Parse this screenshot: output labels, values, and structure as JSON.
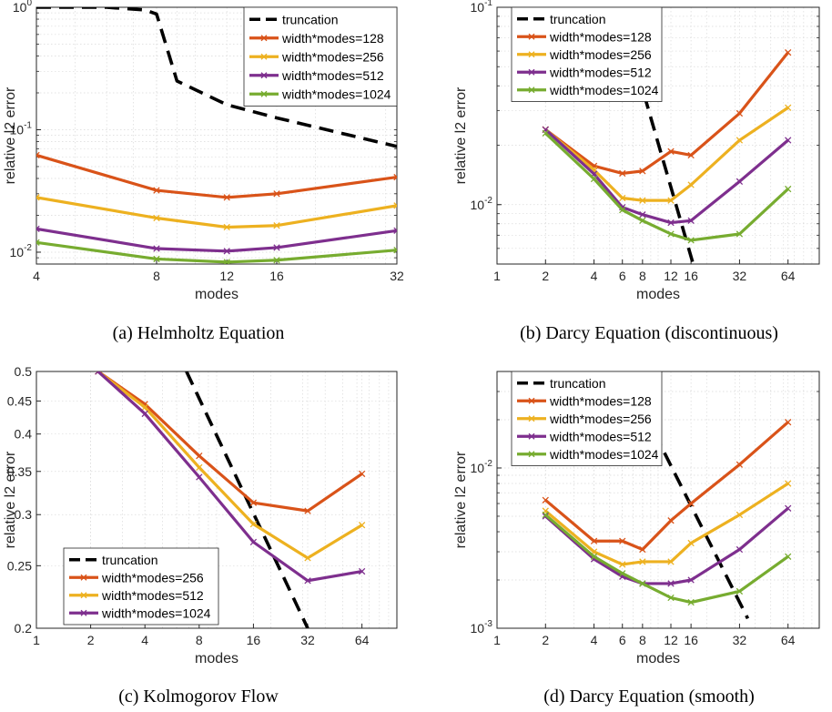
{
  "colors": {
    "truncation": "#000000",
    "c128": "#d95319",
    "c256": "#edb120",
    "c512": "#7e2f8e",
    "c1024": "#77ac30"
  },
  "chart_data": [
    {
      "id": "a",
      "type": "line",
      "caption": "(a) Helmholtz Equation",
      "xlabel": "modes",
      "ylabel": "relative l2 error",
      "x_scale": "log",
      "y_scale": "log",
      "xlim": [
        4,
        32
      ],
      "ylim": [
        0.008,
        1
      ],
      "xticks": [
        4,
        8,
        12,
        16,
        32
      ],
      "xtick_labels": [
        "4",
        "8",
        "12",
        "16",
        "32"
      ],
      "yticks": [
        0.01,
        0.1,
        1
      ],
      "ytick_labels": [
        {
          "b": "10",
          "e": "-2"
        },
        {
          "b": "10",
          "e": "-1"
        },
        {
          "b": "10",
          "e": "0"
        }
      ],
      "grid": true,
      "legend": {
        "position": "top-right",
        "entries": [
          "truncation",
          "width*modes=128",
          "width*modes=256",
          "width*modes=512",
          "width*modes=1024"
        ]
      },
      "series": [
        {
          "name": "truncation",
          "color": "#000000",
          "dashed": true,
          "x": [
            4,
            6,
            7.5,
            8,
            9,
            12,
            16,
            32
          ],
          "y": [
            1,
            1,
            0.95,
            0.88,
            0.25,
            0.16,
            0.125,
            0.073
          ]
        },
        {
          "name": "width*modes=128",
          "color": "#d95319",
          "x": [
            4,
            8,
            12,
            16,
            32
          ],
          "y": [
            0.062,
            0.032,
            0.028,
            0.03,
            0.041
          ]
        },
        {
          "name": "width*modes=256",
          "color": "#edb120",
          "x": [
            4,
            8,
            12,
            16,
            32
          ],
          "y": [
            0.028,
            0.019,
            0.016,
            0.0165,
            0.024
          ]
        },
        {
          "name": "width*modes=512",
          "color": "#7e2f8e",
          "x": [
            4,
            8,
            12,
            16,
            32
          ],
          "y": [
            0.0155,
            0.0107,
            0.0102,
            0.0109,
            0.015
          ]
        },
        {
          "name": "width*modes=1024",
          "color": "#77ac30",
          "x": [
            4,
            8,
            12,
            16,
            32
          ],
          "y": [
            0.012,
            0.0088,
            0.0083,
            0.0086,
            0.0104
          ]
        }
      ]
    },
    {
      "id": "b",
      "type": "line",
      "caption": "(b) Darcy Equation (discontinuous)",
      "xlabel": "modes",
      "ylabel": "relative l2 error",
      "x_scale": "log",
      "y_scale": "log",
      "xlim": [
        1,
        100
      ],
      "ylim": [
        0.005,
        0.1
      ],
      "xticks": [
        1,
        2,
        4,
        6,
        8,
        12,
        16,
        32,
        64
      ],
      "xtick_labels": [
        "1",
        "2",
        "4",
        "6",
        "8",
        "12",
        "16",
        "32",
        "64"
      ],
      "yticks": [
        0.01,
        0.1
      ],
      "ytick_labels": [
        {
          "b": "10",
          "e": "-2"
        },
        {
          "b": "10",
          "e": "-1"
        }
      ],
      "grid": true,
      "legend": {
        "position": "top-left",
        "entries": [
          "truncation",
          "width*modes=128",
          "width*modes=256",
          "width*modes=512",
          "width*modes=1024"
        ]
      },
      "series": [
        {
          "name": "truncation",
          "color": "#000000",
          "dashed": true,
          "x": [
            5.7,
            16.5
          ],
          "y": [
            0.1,
            0.005
          ]
        },
        {
          "name": "width*modes=128",
          "color": "#d95319",
          "x": [
            2,
            4,
            6,
            8,
            12,
            16,
            32,
            64
          ],
          "y": [
            0.024,
            0.0157,
            0.0144,
            0.0148,
            0.0186,
            0.0178,
            0.029,
            0.059
          ]
        },
        {
          "name": "width*modes=256",
          "color": "#edb120",
          "x": [
            2,
            4,
            6,
            8,
            12,
            16,
            32,
            64
          ],
          "y": [
            0.024,
            0.015,
            0.0108,
            0.0105,
            0.0105,
            0.0126,
            0.0212,
            0.031
          ]
        },
        {
          "name": "width*modes=512",
          "color": "#7e2f8e",
          "x": [
            2,
            4,
            6,
            8,
            12,
            16,
            32,
            64
          ],
          "y": [
            0.024,
            0.0143,
            0.0097,
            0.0089,
            0.0081,
            0.0083,
            0.0131,
            0.0212
          ]
        },
        {
          "name": "width*modes=1024",
          "color": "#77ac30",
          "x": [
            2,
            4,
            6,
            8,
            12,
            16,
            32,
            64
          ],
          "y": [
            0.023,
            0.0135,
            0.0094,
            0.0083,
            0.0071,
            0.0066,
            0.0071,
            0.012
          ]
        }
      ]
    },
    {
      "id": "c",
      "type": "line",
      "caption": "(c) Kolmogorov Flow",
      "xlabel": "modes",
      "ylabel": "relative l2 error",
      "x_scale": "log",
      "y_scale": "log",
      "xlim": [
        1,
        100
      ],
      "ylim": [
        0.2,
        0.5
      ],
      "xticks": [
        1,
        2,
        4,
        8,
        16,
        32,
        64
      ],
      "xtick_labels": [
        "1",
        "2",
        "4",
        "8",
        "16",
        "32",
        "64"
      ],
      "yticks": [
        0.2,
        0.25,
        0.3,
        0.35,
        0.4,
        0.45,
        0.5
      ],
      "ytick_labels": [
        "0.2",
        "0.25",
        "0.3",
        "0.35",
        "0.4",
        "0.45",
        "0.5"
      ],
      "grid": true,
      "legend": {
        "position": "bottom-left",
        "entries": [
          "truncation",
          "width*modes=256",
          "width*modes=512",
          "width*modes=1024"
        ]
      },
      "series": [
        {
          "name": "truncation",
          "color": "#000000",
          "dashed": true,
          "x": [
            6.8,
            32
          ],
          "y": [
            0.5,
            0.2
          ]
        },
        {
          "name": "width*modes=256",
          "color": "#d95319",
          "x": [
            2.2,
            4,
            8,
            16,
            32,
            64
          ],
          "y": [
            0.5,
            0.445,
            0.37,
            0.313,
            0.304,
            0.347
          ]
        },
        {
          "name": "width*modes=512",
          "color": "#edb120",
          "x": [
            2.2,
            4,
            8,
            16,
            32,
            64
          ],
          "y": [
            0.5,
            0.44,
            0.355,
            0.29,
            0.257,
            0.289
          ]
        },
        {
          "name": "width*modes=1024",
          "color": "#7e2f8e",
          "x": [
            2.2,
            4,
            8,
            16,
            32,
            64
          ],
          "y": [
            0.5,
            0.43,
            0.343,
            0.272,
            0.237,
            0.245
          ]
        }
      ]
    },
    {
      "id": "d",
      "type": "line",
      "caption": "(d) Darcy Equation (smooth)",
      "xlabel": "modes",
      "ylabel": "relative l2 error",
      "x_scale": "log",
      "y_scale": "log",
      "xlim": [
        1,
        100
      ],
      "ylim": [
        0.001,
        0.04
      ],
      "xticks": [
        1,
        2,
        4,
        6,
        8,
        12,
        16,
        32,
        64
      ],
      "xtick_labels": [
        "1",
        "2",
        "4",
        "6",
        "8",
        "12",
        "16",
        "32",
        "64"
      ],
      "yticks": [
        0.001,
        0.01
      ],
      "ytick_labels": [
        {
          "b": "10",
          "e": "-3"
        },
        {
          "b": "10",
          "e": "-2"
        }
      ],
      "grid": true,
      "legend": {
        "position": "top-left",
        "entries": [
          "truncation",
          "width*modes=128",
          "width*modes=256",
          "width*modes=512",
          "width*modes=1024"
        ]
      },
      "series": [
        {
          "name": "truncation",
          "color": "#000000",
          "dashed": true,
          "x": [
            6.1,
            36
          ],
          "y": [
            0.04,
            0.00115
          ]
        },
        {
          "name": "width*modes=128",
          "color": "#d95319",
          "x": [
            2,
            4,
            6,
            8,
            12,
            16,
            32,
            64
          ],
          "y": [
            0.0063,
            0.0035,
            0.0035,
            0.0031,
            0.0047,
            0.006,
            0.0105,
            0.0193
          ]
        },
        {
          "name": "width*modes=256",
          "color": "#edb120",
          "x": [
            2,
            4,
            6,
            8,
            12,
            16,
            32,
            64
          ],
          "y": [
            0.0054,
            0.003,
            0.0025,
            0.0026,
            0.0026,
            0.0034,
            0.0051,
            0.008
          ]
        },
        {
          "name": "width*modes=512",
          "color": "#7e2f8e",
          "x": [
            2,
            4,
            6,
            8,
            12,
            16,
            32,
            64
          ],
          "y": [
            0.005,
            0.0027,
            0.0021,
            0.0019,
            0.0019,
            0.002,
            0.0031,
            0.0056
          ]
        },
        {
          "name": "width*modes=1024",
          "color": "#77ac30",
          "x": [
            2,
            4,
            6,
            8,
            12,
            16,
            32,
            64
          ],
          "y": [
            0.0051,
            0.0028,
            0.0022,
            0.0019,
            0.00155,
            0.00145,
            0.0017,
            0.0028
          ]
        }
      ]
    }
  ]
}
